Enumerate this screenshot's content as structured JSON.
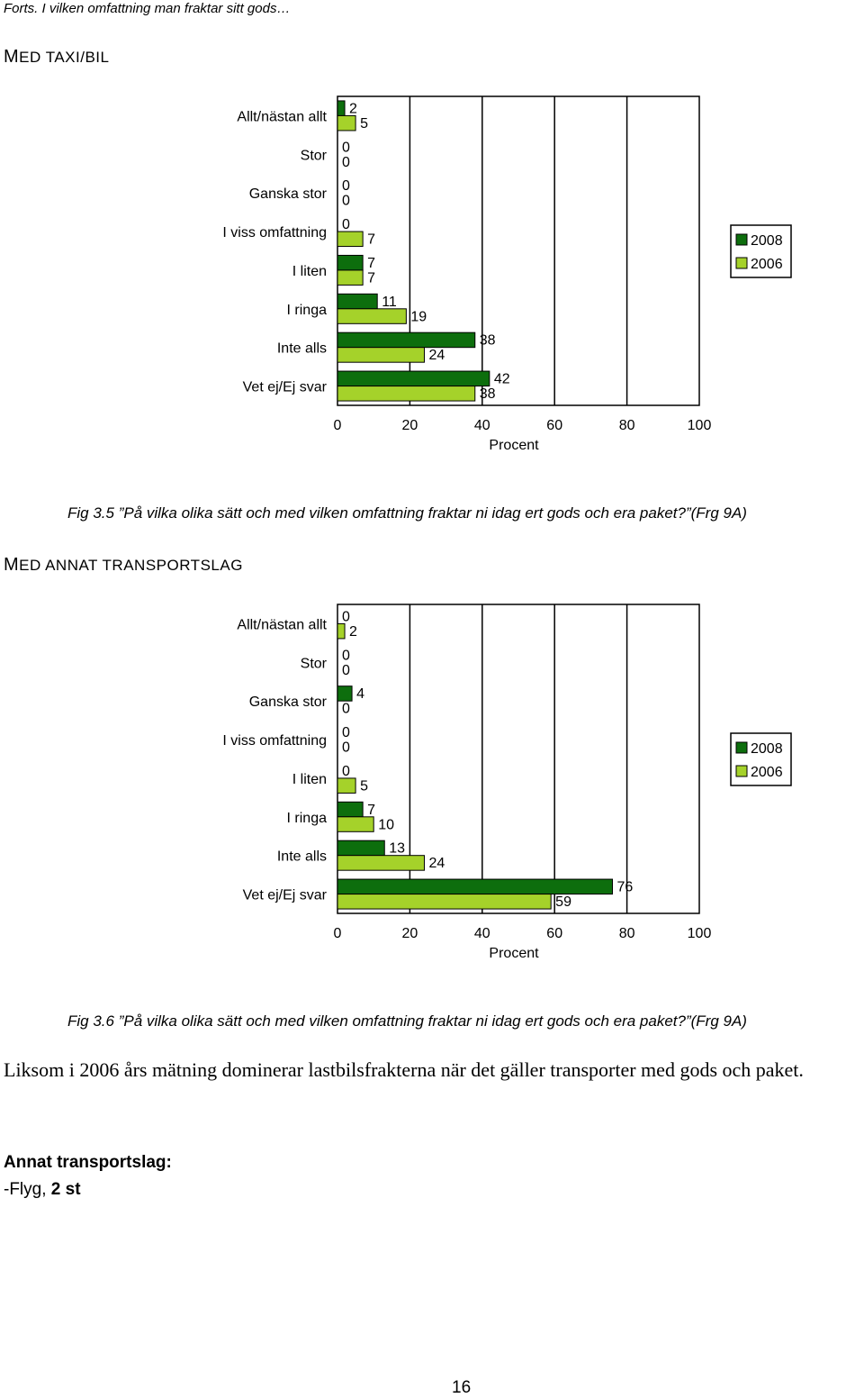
{
  "header": "Forts. I vilken omfattning man fraktar sitt gods…",
  "sections": [
    {
      "first": "M",
      "rest": "ED TAXI/BIL"
    },
    {
      "first": "M",
      "rest": "ED ANNAT TRANSPORTSLAG"
    }
  ],
  "chart_data": [
    {
      "type": "bar",
      "orientation": "horizontal",
      "categories": [
        "Allt/nästan allt",
        "Stor",
        "Ganska stor",
        "I viss omfattning",
        "I liten",
        "I ringa",
        "Inte alls",
        "Vet ej/Ej svar"
      ],
      "series": [
        {
          "name": "2008",
          "values": [
            2,
            0,
            0,
            0,
            7,
            11,
            38,
            42
          ],
          "color": "#0d6e0d"
        },
        {
          "name": "2006",
          "values": [
            5,
            0,
            0,
            7,
            7,
            19,
            24,
            38
          ],
          "color": "#a5d22a"
        }
      ],
      "xlabel": "Procent",
      "xticks": [
        "0",
        "20",
        "40",
        "60",
        "80",
        "100"
      ],
      "xlim": [
        0,
        100
      ],
      "legend": "right",
      "caption": "Fig 3.5 ”På vilka olika sätt och med vilken omfattning fraktar ni idag ert gods och era paket?”(Frg 9A)"
    },
    {
      "type": "bar",
      "orientation": "horizontal",
      "categories": [
        "Allt/nästan allt",
        "Stor",
        "Ganska stor",
        "I viss omfattning",
        "I liten",
        "I ringa",
        "Inte alls",
        "Vet ej/Ej svar"
      ],
      "series": [
        {
          "name": "2008",
          "values": [
            0,
            0,
            4,
            0,
            0,
            7,
            13,
            76
          ],
          "color": "#0d6e0d"
        },
        {
          "name": "2006",
          "values": [
            2,
            0,
            0,
            0,
            5,
            10,
            24,
            59
          ],
          "color": "#a5d22a"
        }
      ],
      "xlabel": "Procent",
      "xticks": [
        "0",
        "20",
        "40",
        "60",
        "80",
        "100"
      ],
      "xlim": [
        0,
        100
      ],
      "legend": "right",
      "caption": "Fig 3.6 ”På vilka olika sätt och med vilken omfattning fraktar ni idag ert gods och era paket?”(Frg 9A)"
    }
  ],
  "paragraph": "Liksom i 2006 års mätning dominerar lastbilsfrakterna när det gäller transporter med gods och paket.",
  "annat_label": "Annat transportslag:",
  "annat_item_prefix": "-Flyg, ",
  "annat_item_bold": "2 st",
  "page_number": "16"
}
